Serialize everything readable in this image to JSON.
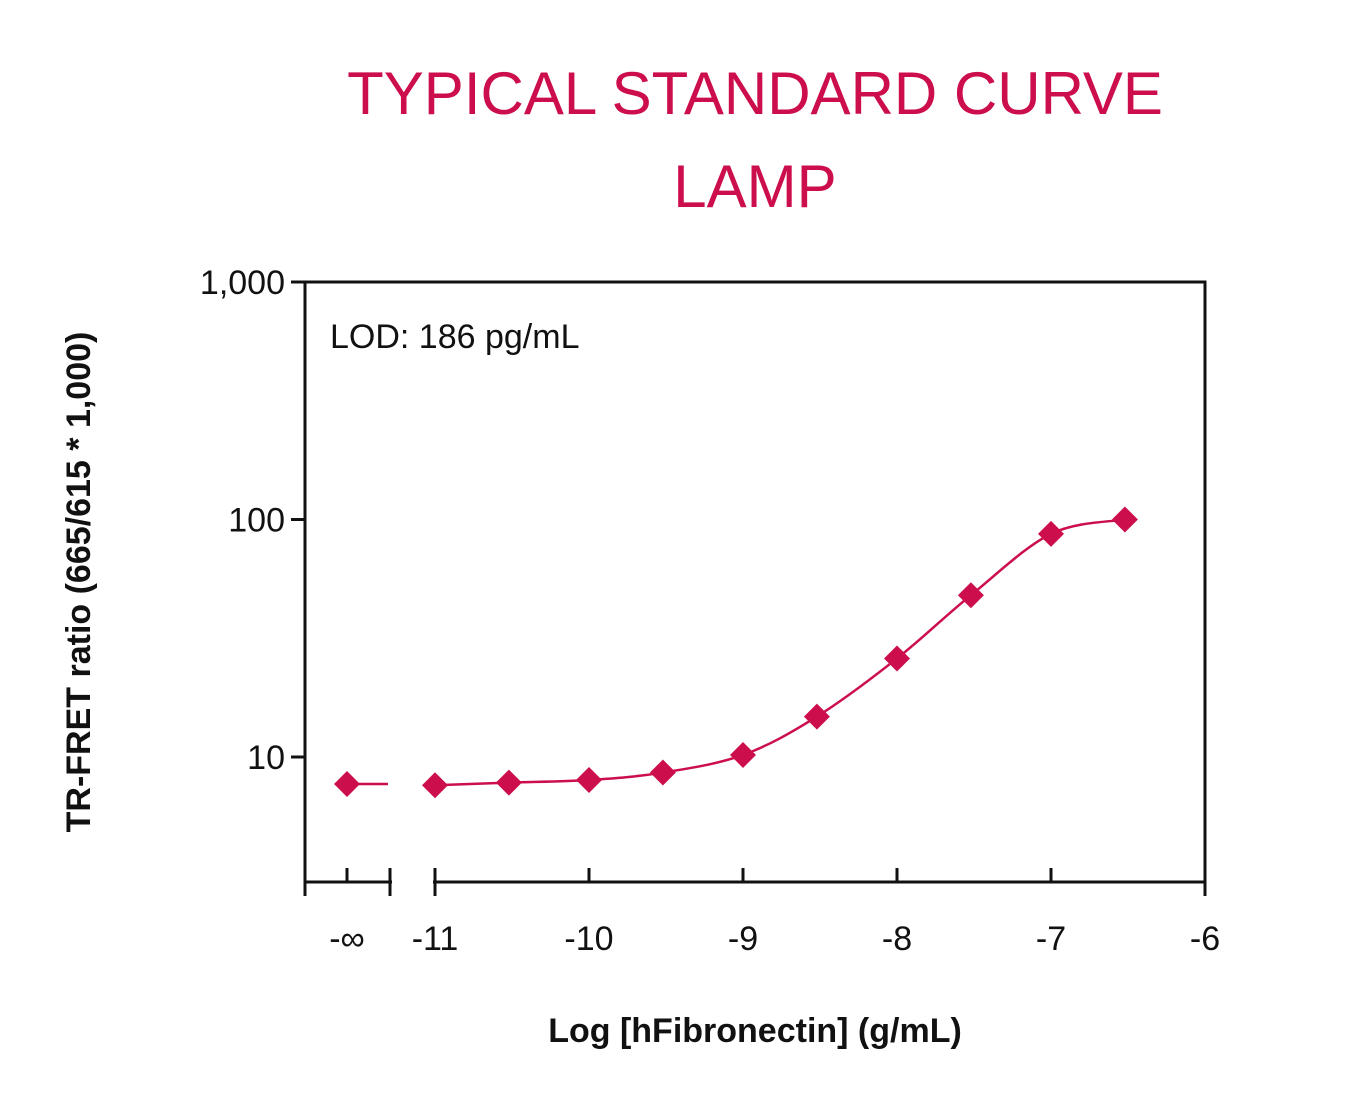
{
  "chart_data": {
    "type": "scatter",
    "title_lines": [
      "TYPICAL STANDARD CURVE",
      "LAMP"
    ],
    "xlabel": "Log [hFibronectin] (g/mL)",
    "ylabel": "TR-FRET ratio (665/615 * 1,000)",
    "annotation": "LOD: 186 pg/mL",
    "x_scale": "linear",
    "y_scale": "log",
    "xlim": [
      -11,
      -6
    ],
    "ylim": [
      3.5,
      1000
    ],
    "x_ticks": [
      {
        "value": "-inf",
        "label": "-∞"
      },
      {
        "value": -11,
        "label": "-11"
      },
      {
        "value": -10,
        "label": "-10"
      },
      {
        "value": -9,
        "label": "-9"
      },
      {
        "value": -8,
        "label": "-8"
      },
      {
        "value": -7,
        "label": "-7"
      },
      {
        "value": -6,
        "label": "-6"
      }
    ],
    "y_ticks": [
      {
        "value": 10,
        "label": "10"
      },
      {
        "value": 100,
        "label": "100"
      },
      {
        "value": 1000,
        "label": "1,000"
      }
    ],
    "axis_break": "between -∞ and -11",
    "grid": false,
    "series": [
      {
        "color": "#cc0f4c",
        "marker": "diamond",
        "points": [
          {
            "x": "-inf",
            "y": 7.7
          },
          {
            "x": -11.0,
            "y": 7.6
          },
          {
            "x": -10.52,
            "y": 7.8
          },
          {
            "x": -10.0,
            "y": 8.0
          },
          {
            "x": -9.52,
            "y": 8.6
          },
          {
            "x": -9.0,
            "y": 10.2
          },
          {
            "x": -8.52,
            "y": 14.8
          },
          {
            "x": -8.0,
            "y": 26
          },
          {
            "x": -7.52,
            "y": 48
          },
          {
            "x": -7.0,
            "y": 87
          },
          {
            "x": -6.52,
            "y": 100
          }
        ]
      }
    ]
  }
}
